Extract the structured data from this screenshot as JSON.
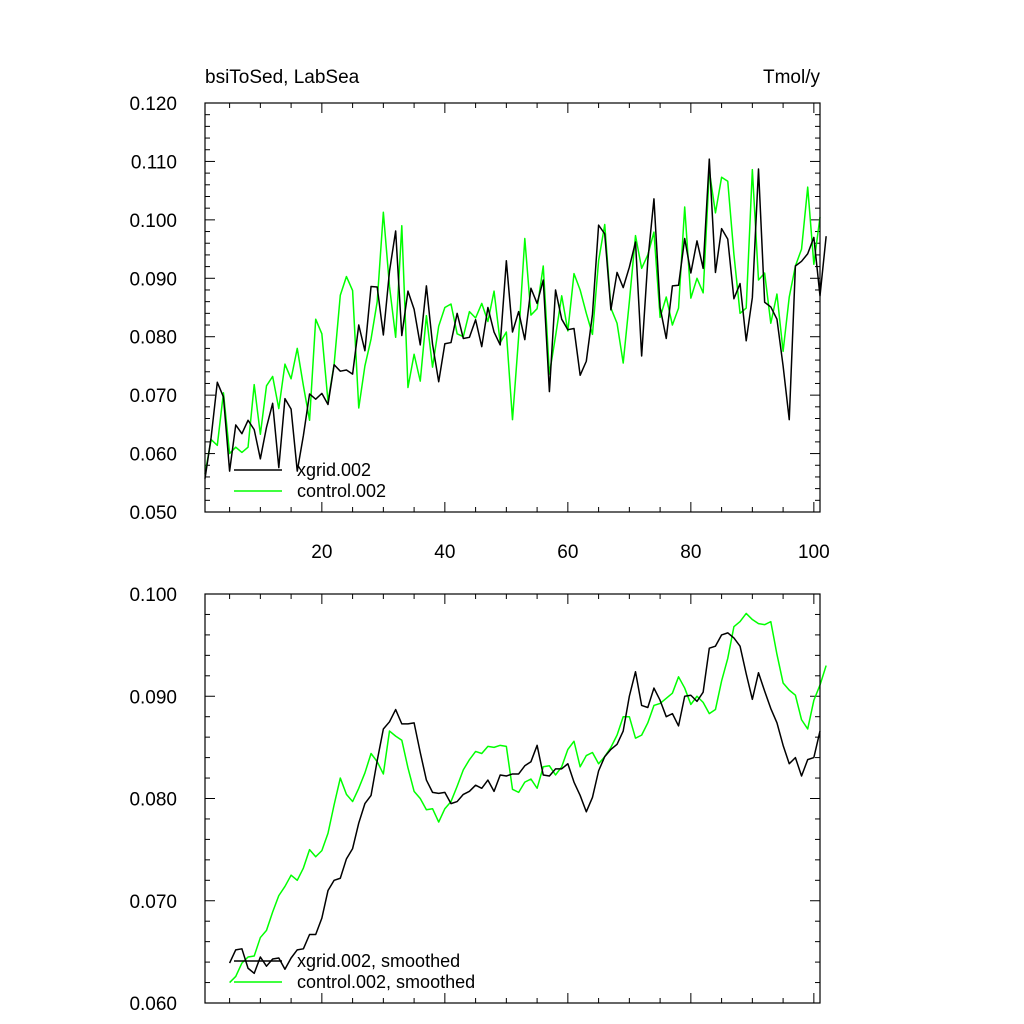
{
  "chart_data": [
    {
      "type": "line",
      "title": "bsiToSed, LabSea",
      "units": "Tmol/y",
      "xlim": [
        1,
        101
      ],
      "ylim": [
        0.05,
        0.12
      ],
      "x_ticks": [
        "20",
        "40",
        "60",
        "80",
        "100"
      ],
      "y_ticks": [
        "0.050",
        "0.060",
        "0.070",
        "0.080",
        "0.090",
        "0.100",
        "0.110",
        "0.120"
      ],
      "series": [
        {
          "name": "xgrid.002",
          "color": "#000000",
          "x_start": 1,
          "values": [
            0.0557,
            0.0628,
            0.0722,
            0.0697,
            0.057,
            0.0649,
            0.0634,
            0.0657,
            0.0641,
            0.0591,
            0.0645,
            0.0686,
            0.0576,
            0.0694,
            0.0676,
            0.057,
            0.0631,
            0.0702,
            0.0693,
            0.0703,
            0.0684,
            0.0752,
            0.0741,
            0.0743,
            0.0736,
            0.082,
            0.0776,
            0.0886,
            0.0885,
            0.0803,
            0.0912,
            0.0981,
            0.0802,
            0.0878,
            0.0847,
            0.0786,
            0.0887,
            0.0787,
            0.0723,
            0.0788,
            0.079,
            0.084,
            0.0797,
            0.0799,
            0.0829,
            0.0783,
            0.085,
            0.0808,
            0.0786,
            0.093,
            0.0808,
            0.0843,
            0.0795,
            0.0883,
            0.0857,
            0.0897,
            0.0706,
            0.088,
            0.083,
            0.0812,
            0.0814,
            0.0734,
            0.0758,
            0.0838,
            0.0991,
            0.0976,
            0.0846,
            0.091,
            0.0884,
            0.0919,
            0.0962,
            0.0767,
            0.093,
            0.1036,
            0.085,
            0.0797,
            0.0887,
            0.0888,
            0.0968,
            0.0909,
            0.0964,
            0.0917,
            0.1104,
            0.091,
            0.0985,
            0.0967,
            0.0865,
            0.0891,
            0.0793,
            0.0867,
            0.1087,
            0.0859,
            0.0851,
            0.083,
            0.075,
            0.0658,
            0.0921,
            0.0929,
            0.0942,
            0.097,
            0.087,
            0.0972
          ]
        },
        {
          "name": "control.002",
          "color": "#00ff00",
          "x_start": 1,
          "values": [
            0.0565,
            0.0624,
            0.0614,
            0.0704,
            0.06,
            0.0611,
            0.0602,
            0.0611,
            0.0718,
            0.0633,
            0.0716,
            0.0732,
            0.0677,
            0.0753,
            0.0728,
            0.078,
            0.0716,
            0.0657,
            0.083,
            0.0805,
            0.0689,
            0.0753,
            0.0871,
            0.0903,
            0.0879,
            0.0678,
            0.075,
            0.0796,
            0.086,
            0.1013,
            0.0886,
            0.0799,
            0.099,
            0.0713,
            0.077,
            0.0724,
            0.0836,
            0.0748,
            0.0818,
            0.085,
            0.0856,
            0.0805,
            0.08,
            0.0843,
            0.0832,
            0.0857,
            0.0826,
            0.0878,
            0.079,
            0.0808,
            0.0658,
            0.08,
            0.0968,
            0.0837,
            0.0848,
            0.0921,
            0.0736,
            0.0801,
            0.087,
            0.081,
            0.0908,
            0.088,
            0.084,
            0.0804,
            0.093,
            0.0992,
            0.0849,
            0.0823,
            0.0755,
            0.086,
            0.0973,
            0.0917,
            0.094,
            0.0979,
            0.0833,
            0.0868,
            0.082,
            0.0849,
            0.1022,
            0.0866,
            0.09,
            0.0875,
            0.1084,
            0.1012,
            0.1073,
            0.1066,
            0.0941,
            0.084,
            0.0849,
            0.1086,
            0.0897,
            0.0909,
            0.0823,
            0.0873,
            0.0775,
            0.0868,
            0.0921,
            0.095,
            0.1056,
            0.0924,
            0.1005
          ]
        }
      ]
    },
    {
      "type": "line",
      "xlim": [
        1,
        101
      ],
      "ylim": [
        0.06,
        0.1
      ],
      "y_ticks": [
        "0.060",
        "0.070",
        "0.080",
        "0.090",
        "0.100"
      ],
      "series": [
        {
          "name": "xgrid.002, smoothed",
          "color": "#000000",
          "x_start": 5,
          "values": [
            0.0639,
            0.0652,
            0.0653,
            0.0634,
            0.0629,
            0.0645,
            0.0636,
            0.0643,
            0.0644,
            0.0633,
            0.0644,
            0.0652,
            0.0653,
            0.0667,
            0.0667,
            0.0683,
            0.071,
            0.072,
            0.0722,
            0.0741,
            0.0751,
            0.0776,
            0.0795,
            0.0803,
            0.0837,
            0.0868,
            0.0875,
            0.0887,
            0.0873,
            0.0873,
            0.0874,
            0.0845,
            0.0818,
            0.0806,
            0.0805,
            0.0806,
            0.0795,
            0.0797,
            0.0804,
            0.0807,
            0.0813,
            0.081,
            0.0818,
            0.0807,
            0.0823,
            0.0822,
            0.0824,
            0.0824,
            0.0832,
            0.0836,
            0.0852,
            0.0823,
            0.0822,
            0.0829,
            0.0829,
            0.0834,
            0.0816,
            0.0803,
            0.0787,
            0.0801,
            0.0827,
            0.0841,
            0.0848,
            0.0853,
            0.0866,
            0.09,
            0.0924,
            0.0891,
            0.0889,
            0.0908,
            0.0896,
            0.088,
            0.0883,
            0.0871,
            0.09,
            0.0901,
            0.0895,
            0.0904,
            0.0947,
            0.0949,
            0.096,
            0.0962,
            0.0957,
            0.0949,
            0.0922,
            0.0897,
            0.0923,
            0.0905,
            0.0888,
            0.0874,
            0.0852,
            0.0834,
            0.084,
            0.0822,
            0.0838,
            0.084,
            0.0866
          ]
        },
        {
          "name": "control.002, smoothed",
          "color": "#00ff00",
          "x_start": 5,
          "values": [
            0.062,
            0.0626,
            0.0639,
            0.0645,
            0.0646,
            0.0664,
            0.0671,
            0.0689,
            0.0705,
            0.0714,
            0.0725,
            0.072,
            0.0732,
            0.075,
            0.0743,
            0.0749,
            0.0766,
            0.0794,
            0.082,
            0.0804,
            0.0797,
            0.081,
            0.0825,
            0.0844,
            0.0836,
            0.0824,
            0.0866,
            0.0861,
            0.0857,
            0.083,
            0.0807,
            0.08,
            0.0789,
            0.079,
            0.0777,
            0.079,
            0.0797,
            0.0812,
            0.0828,
            0.0838,
            0.0846,
            0.0844,
            0.0851,
            0.085,
            0.0852,
            0.0851,
            0.0809,
            0.0806,
            0.0816,
            0.0819,
            0.081,
            0.0831,
            0.0832,
            0.0823,
            0.0831,
            0.0848,
            0.0856,
            0.0831,
            0.0842,
            0.0845,
            0.0834,
            0.0841,
            0.085,
            0.0862,
            0.088,
            0.088,
            0.0859,
            0.0862,
            0.0874,
            0.0891,
            0.0893,
            0.0898,
            0.0903,
            0.0919,
            0.0908,
            0.0892,
            0.09,
            0.0894,
            0.0883,
            0.0887,
            0.0915,
            0.0937,
            0.0968,
            0.0973,
            0.0981,
            0.0975,
            0.0971,
            0.097,
            0.0973,
            0.0941,
            0.0913,
            0.0906,
            0.0901,
            0.0877,
            0.0868,
            0.0896,
            0.0911,
            0.093
          ]
        }
      ]
    }
  ]
}
